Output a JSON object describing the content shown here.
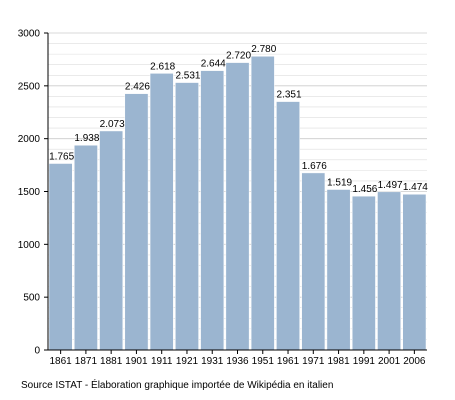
{
  "chart_data": {
    "type": "bar",
    "title": "",
    "xlabel": "",
    "ylabel": "",
    "categories": [
      "1861",
      "1871",
      "1881",
      "1901",
      "1911",
      "1921",
      "1931",
      "1936",
      "1951",
      "1961",
      "1971",
      "1981",
      "1991",
      "2001",
      "2006"
    ],
    "values": [
      1765,
      1938,
      2073,
      2426,
      2618,
      2531,
      2644,
      2720,
      2780,
      2351,
      1676,
      1519,
      1456,
      1497,
      1474
    ],
    "value_labels": [
      "1.765",
      "1.938",
      "2.073",
      "2.426",
      "2.618",
      "2.531",
      "2.644",
      "2.720",
      "2.780",
      "2.351",
      "1.676",
      "1.519",
      "1.456",
      "1.497",
      "1.474"
    ],
    "ylim": [
      0,
      3000
    ],
    "yticks": [
      0,
      500,
      1000,
      1500,
      2000,
      2500,
      3000
    ],
    "ytick_labels": [
      "0",
      "500",
      "1000",
      "1500",
      "2000",
      "2500",
      "3000"
    ],
    "grid": true,
    "legend": "none",
    "bar_color": "#9bb5d0",
    "bar_edge_color": "#ffffff",
    "grid_color": "#cccccc"
  },
  "footer": {
    "source": "Source ISTAT - Élaboration graphique importée de Wikipédia en italien"
  }
}
